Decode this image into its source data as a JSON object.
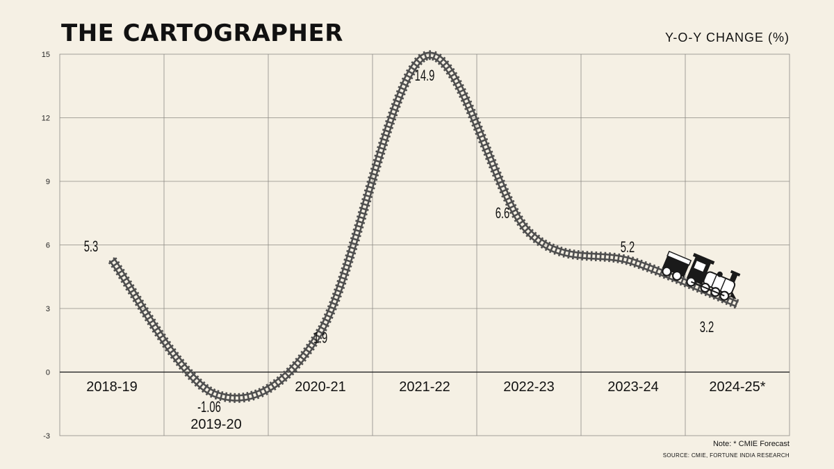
{
  "header": {
    "title": "THE CARTOGRAPHER",
    "unit_label": "Y-O-Y CHANGE (%)"
  },
  "footer": {
    "note": "Note: * CMIE Forecast",
    "source": "SOURCE: CMIE, FORTUNE INDIA RESEARCH"
  },
  "chart_data": {
    "type": "line",
    "title": "THE CARTOGRAPHER",
    "ylabel": "Y-O-Y CHANGE (%)",
    "categories": [
      "2018-19",
      "2019-20",
      "2020-21",
      "2021-22",
      "2022-23",
      "2023-24",
      "2024-25*"
    ],
    "values": [
      5.3,
      -1.06,
      1.9,
      14.9,
      6.6,
      5.2,
      3.2
    ],
    "data_labels": [
      "5.3",
      "-1.06",
      "1.9",
      "14.9",
      "6.6",
      "5.2",
      "3.2"
    ],
    "ylim": [
      -3,
      15
    ],
    "yticks": [
      -3,
      0,
      3,
      6,
      9,
      12,
      15
    ],
    "grid": true,
    "line_style": "railway-track",
    "marker_end": "locomotive-icon",
    "colors": {
      "track": "#4f4f4f",
      "background": "#f5f0e4",
      "grid": "#8c8a84"
    }
  }
}
